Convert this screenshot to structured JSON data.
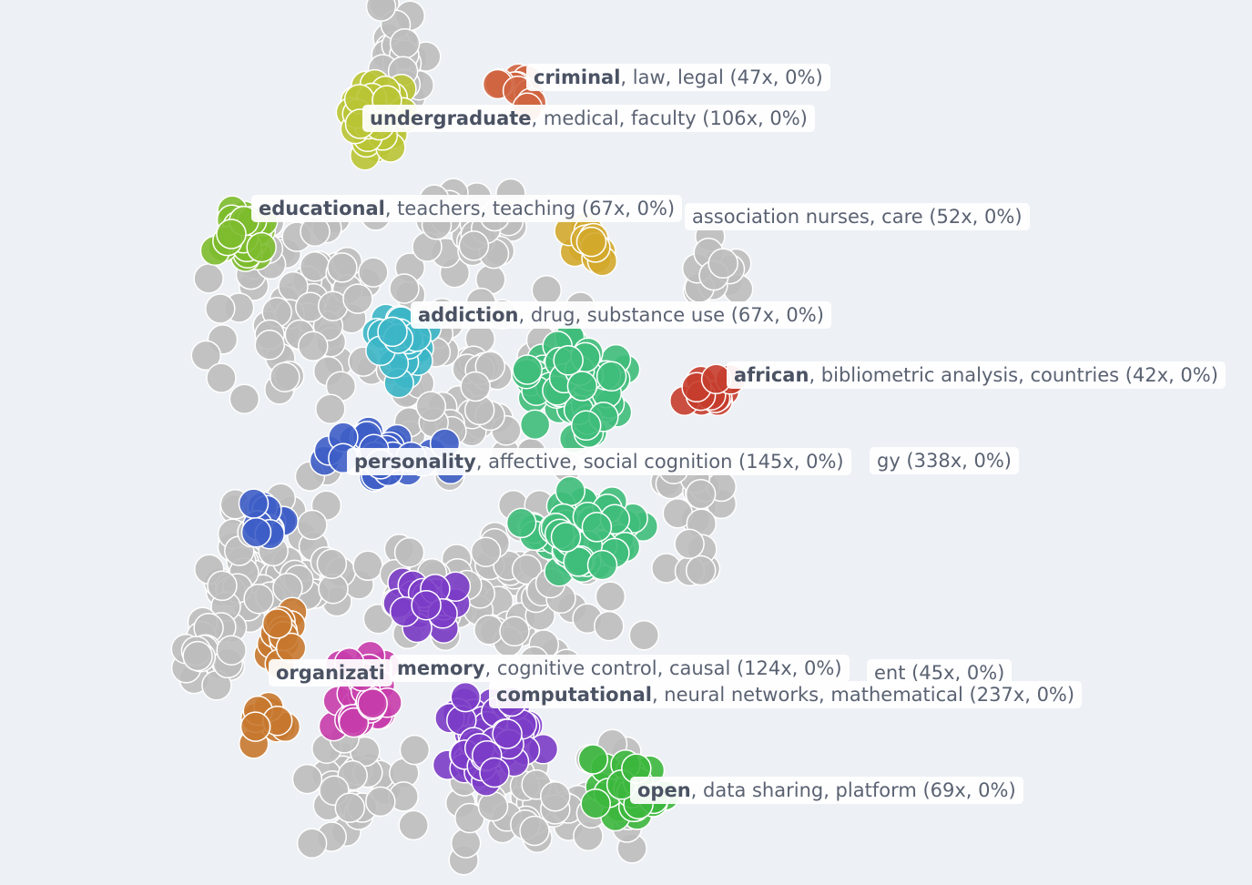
{
  "labels": [
    {
      "bold": "criminal",
      "rest": ", law, legal (47x, 0%)"
    },
    {
      "bold": "undergraduate",
      "rest": ", medical, faculty (106x, 0%)"
    },
    {
      "rest": "association nurses, care (52x, 0%)"
    },
    {
      "bold": "educational",
      "rest": ", teachers, teaching (67x, 0%)"
    },
    {
      "bold": "addiction",
      "rest": ", drug, substance use (67x, 0%)"
    },
    {
      "bold": "african",
      "rest": ", bibliometric analysis, countries (42x, 0%)"
    },
    {
      "rest": "gy (338x, 0%)"
    },
    {
      "bold": "personality",
      "rest": ", affective, social cognition (145x, 0%)"
    },
    {
      "rest": "ent (45x, 0%)"
    },
    {
      "bold": "organizati"
    },
    {
      "bold": "memory",
      "rest": ", cognitive control, causal (124x, 0%)"
    },
    {
      "bold": "computational",
      "rest": ", neural networks, mathematical (237x, 0%)"
    },
    {
      "bold": "open",
      "rest": ", data sharing, platform (69x, 0%)"
    }
  ]
}
